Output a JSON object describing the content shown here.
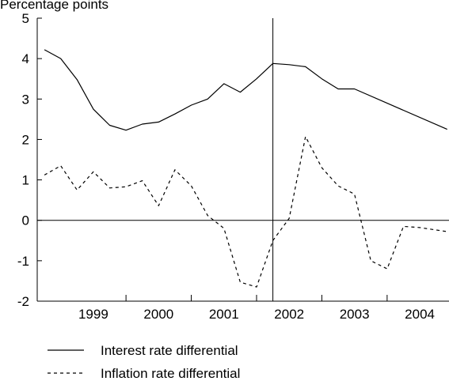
{
  "chart_data": {
    "type": "line",
    "ylabel": "Percentage points",
    "ylim": [
      -2,
      5
    ],
    "yticks": [
      -2,
      -1,
      0,
      1,
      2,
      3,
      4,
      5
    ],
    "xlim": [
      1998.64,
      2004.96
    ],
    "categories": [
      "1999",
      "2000",
      "2001",
      "2002",
      "2003",
      "2004"
    ],
    "vertical_marker_x": 2002.25,
    "zero_line": 0,
    "grid": false,
    "legend_position": "bottom-left",
    "series": [
      {
        "name": "Interest rate differential",
        "style": "solid",
        "color": "#000000",
        "x": [
          1998.75,
          1999.0,
          1999.25,
          1999.5,
          1999.75,
          2000.0,
          2000.25,
          2000.5,
          2000.75,
          2001.0,
          2001.25,
          2001.5,
          2001.75,
          2002.0,
          2002.25,
          2002.5,
          2002.75,
          2003.0,
          2003.25,
          2003.5,
          2004.92
        ],
        "values": [
          4.22,
          4.0,
          3.48,
          2.75,
          2.35,
          2.23,
          2.38,
          2.43,
          2.63,
          2.85,
          3.0,
          3.38,
          3.17,
          3.5,
          3.88,
          3.85,
          3.8,
          3.5,
          3.25,
          3.25,
          2.25
        ]
      },
      {
        "name": "Inflation rate differential",
        "style": "dashed",
        "color": "#000000",
        "x": [
          1998.75,
          1999.0,
          1999.25,
          1999.5,
          1999.75,
          2000.0,
          2000.25,
          2000.5,
          2000.75,
          2001.0,
          2001.25,
          2001.5,
          2001.75,
          2002.0,
          2002.25,
          2002.5,
          2002.75,
          2003.0,
          2003.25,
          2003.5,
          2003.75,
          2004.0,
          2004.25,
          2004.5,
          2004.92
        ],
        "values": [
          1.12,
          1.35,
          0.75,
          1.2,
          0.8,
          0.83,
          0.98,
          0.36,
          1.25,
          0.85,
          0.12,
          -0.2,
          -1.53,
          -1.65,
          -0.5,
          0.05,
          2.07,
          1.3,
          0.85,
          0.65,
          -1.0,
          -1.2,
          -0.15,
          -0.18,
          -0.28
        ]
      }
    ]
  }
}
